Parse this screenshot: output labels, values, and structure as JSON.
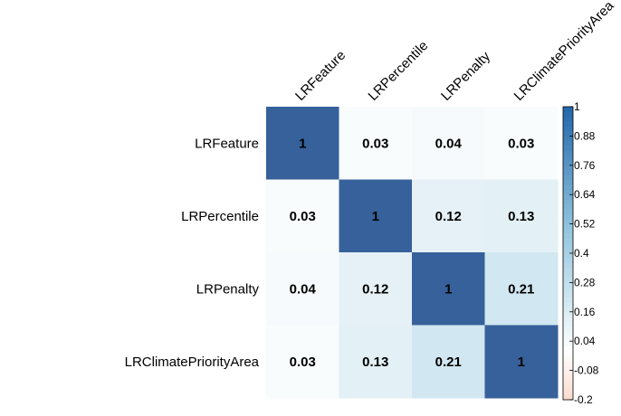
{
  "chart_data": {
    "type": "heatmap",
    "title": "",
    "rows": [
      "LRFeature",
      "LRPercentile",
      "LRPenalty",
      "LRClimatePriorityArea"
    ],
    "columns": [
      "LRFeature",
      "LRPercentile",
      "LRPenalty",
      "LRClimatePriorityArea"
    ],
    "values": [
      [
        1,
        0.03,
        0.04,
        0.03
      ],
      [
        0.03,
        1,
        0.12,
        0.13
      ],
      [
        0.04,
        0.12,
        1,
        0.21
      ],
      [
        0.03,
        0.13,
        0.21,
        1
      ]
    ],
    "value_labels": [
      [
        "1",
        "0.03",
        "0.04",
        "0.03"
      ],
      [
        "0.03",
        "1",
        "0.12",
        "0.13"
      ],
      [
        "0.04",
        "0.12",
        "1",
        "0.21"
      ],
      [
        "0.03",
        "0.13",
        "0.21",
        "1"
      ]
    ],
    "color_scale": {
      "range": [
        -0.2,
        1
      ],
      "ticks": [
        1,
        0.88,
        0.76,
        0.64,
        0.52,
        0.4,
        0.28,
        0.16,
        0.04,
        -0.08,
        -0.2
      ],
      "tick_labels": [
        "1",
        "0.88",
        "0.76",
        "0.64",
        "0.52",
        "0.4",
        "0.28",
        "0.16",
        "0.04",
        "-0.08",
        "-0.2"
      ],
      "stops": [
        {
          "value": -1,
          "color": "#67001f"
        },
        {
          "value": -0.5,
          "color": "#f4a582"
        },
        {
          "value": 0,
          "color": "#ffffff"
        },
        {
          "value": 0.5,
          "color": "#92c5de"
        },
        {
          "value": 1,
          "color": "#2166ac"
        }
      ],
      "max_color": "#36619a",
      "legend_position": "right"
    },
    "grid": false
  }
}
